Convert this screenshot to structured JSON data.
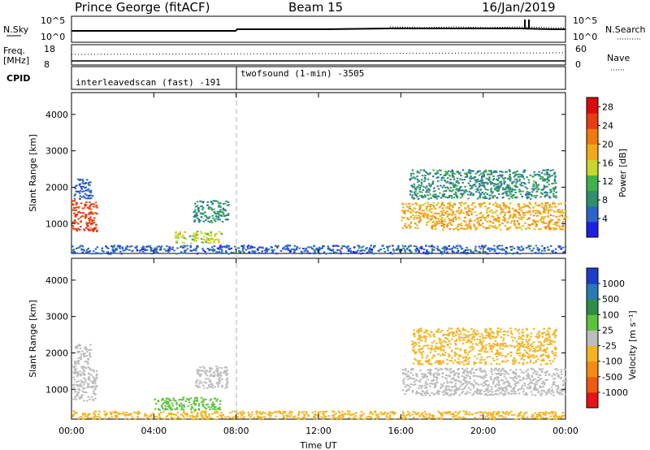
{
  "header": {
    "station": "Prince George (fitACF)",
    "beam": "Beam 15",
    "date": "16/Jan/2019"
  },
  "top_panels": {
    "nsky": {
      "label": "N.Sky",
      "ticks": [
        "10^5",
        "10^0"
      ]
    },
    "nsearch": {
      "label": "N.Search",
      "ticks": [
        "10^5",
        "10^0"
      ]
    },
    "freq": {
      "label_line1": "Freq.",
      "label_line2": "[MHz]",
      "ticks": [
        "18",
        "8"
      ]
    },
    "nave": {
      "label": "Nave",
      "ticks": [
        "60",
        "0"
      ]
    },
    "cpid": {
      "label": "CPID",
      "segments": [
        {
          "text": "interleavedscan (fast) -191",
          "start_hour": 0,
          "end_hour": 8
        },
        {
          "text": "twofsound (1-min) -3505",
          "start_hour": 8,
          "end_hour": 24
        }
      ]
    }
  },
  "x_axis": {
    "label": "Time UT",
    "ticks": [
      "00:00",
      "04:00",
      "08:00",
      "12:00",
      "16:00",
      "20:00",
      "00:00"
    ],
    "range_hours": [
      0,
      24
    ]
  },
  "chart_data": [
    {
      "type": "heatmap",
      "name": "power",
      "ylabel": "Slant Range [km]",
      "ylim": [
        180,
        4600
      ],
      "yticks": [
        1000,
        2000,
        3000,
        4000
      ],
      "colorbar": {
        "label": "Power [dB]",
        "ticks": [
          4,
          8,
          12,
          16,
          20,
          24,
          28
        ],
        "range": [
          0,
          30
        ],
        "colors": [
          "#1e1ee6",
          "#2a64c8",
          "#2f8f6e",
          "#3fb24a",
          "#c9d62a",
          "#f2a818",
          "#f07a10",
          "#e63c12",
          "#dc0a0a"
        ]
      },
      "regions": [
        {
          "x": [
            0.0,
            1.2
          ],
          "y": [
            800,
            1650
          ],
          "level": 27
        },
        {
          "x": [
            0.1,
            1.0
          ],
          "y": [
            1700,
            2250
          ],
          "level": 5
        },
        {
          "x": [
            5.0,
            7.3
          ],
          "y": [
            480,
            800
          ],
          "level": 16
        },
        {
          "x": [
            5.9,
            7.6
          ],
          "y": [
            1050,
            1650
          ],
          "level": 8
        },
        {
          "x": [
            16.0,
            24.0
          ],
          "y": [
            850,
            1600
          ],
          "level": 18
        },
        {
          "x": [
            16.4,
            23.5
          ],
          "y": [
            1700,
            2500
          ],
          "level": 9
        },
        {
          "x": [
            0.0,
            24.0
          ],
          "y": [
            190,
            420
          ],
          "level": 4
        }
      ]
    },
    {
      "type": "heatmap",
      "name": "velocity",
      "ylabel": "Slant Range [km]",
      "ylim": [
        180,
        4600
      ],
      "yticks": [
        1000,
        2000,
        3000,
        4000
      ],
      "colorbar": {
        "label": "Velocity [m s⁻¹]",
        "ticks": [
          "1000",
          "500",
          "100",
          "25",
          "-25",
          "-100",
          "-500",
          "-1000"
        ],
        "colors": [
          "#1e3cc8",
          "#2a78b4",
          "#2e8c4a",
          "#5cc23c",
          "#bcbcbc",
          "#f2b422",
          "#f28a14",
          "#ee5a12",
          "#e61414"
        ]
      },
      "regions": [
        {
          "x": [
            0.0,
            1.2
          ],
          "y": [
            700,
            1650
          ],
          "category": "-25..25"
        },
        {
          "x": [
            0.1,
            0.9
          ],
          "y": [
            1700,
            2250
          ],
          "category": "-25..25"
        },
        {
          "x": [
            4.0,
            7.2
          ],
          "y": [
            450,
            800
          ],
          "category": "25..100"
        },
        {
          "x": [
            6.0,
            7.6
          ],
          "y": [
            1050,
            1650
          ],
          "category": "-25..25"
        },
        {
          "x": [
            16.0,
            24.0
          ],
          "y": [
            850,
            1600
          ],
          "category": "-25..25"
        },
        {
          "x": [
            16.5,
            23.5
          ],
          "y": [
            1700,
            2700
          ],
          "category": "-25..-100"
        },
        {
          "x": [
            0.0,
            24.0
          ],
          "y": [
            190,
            420
          ],
          "category": "-25..-100"
        }
      ]
    }
  ]
}
